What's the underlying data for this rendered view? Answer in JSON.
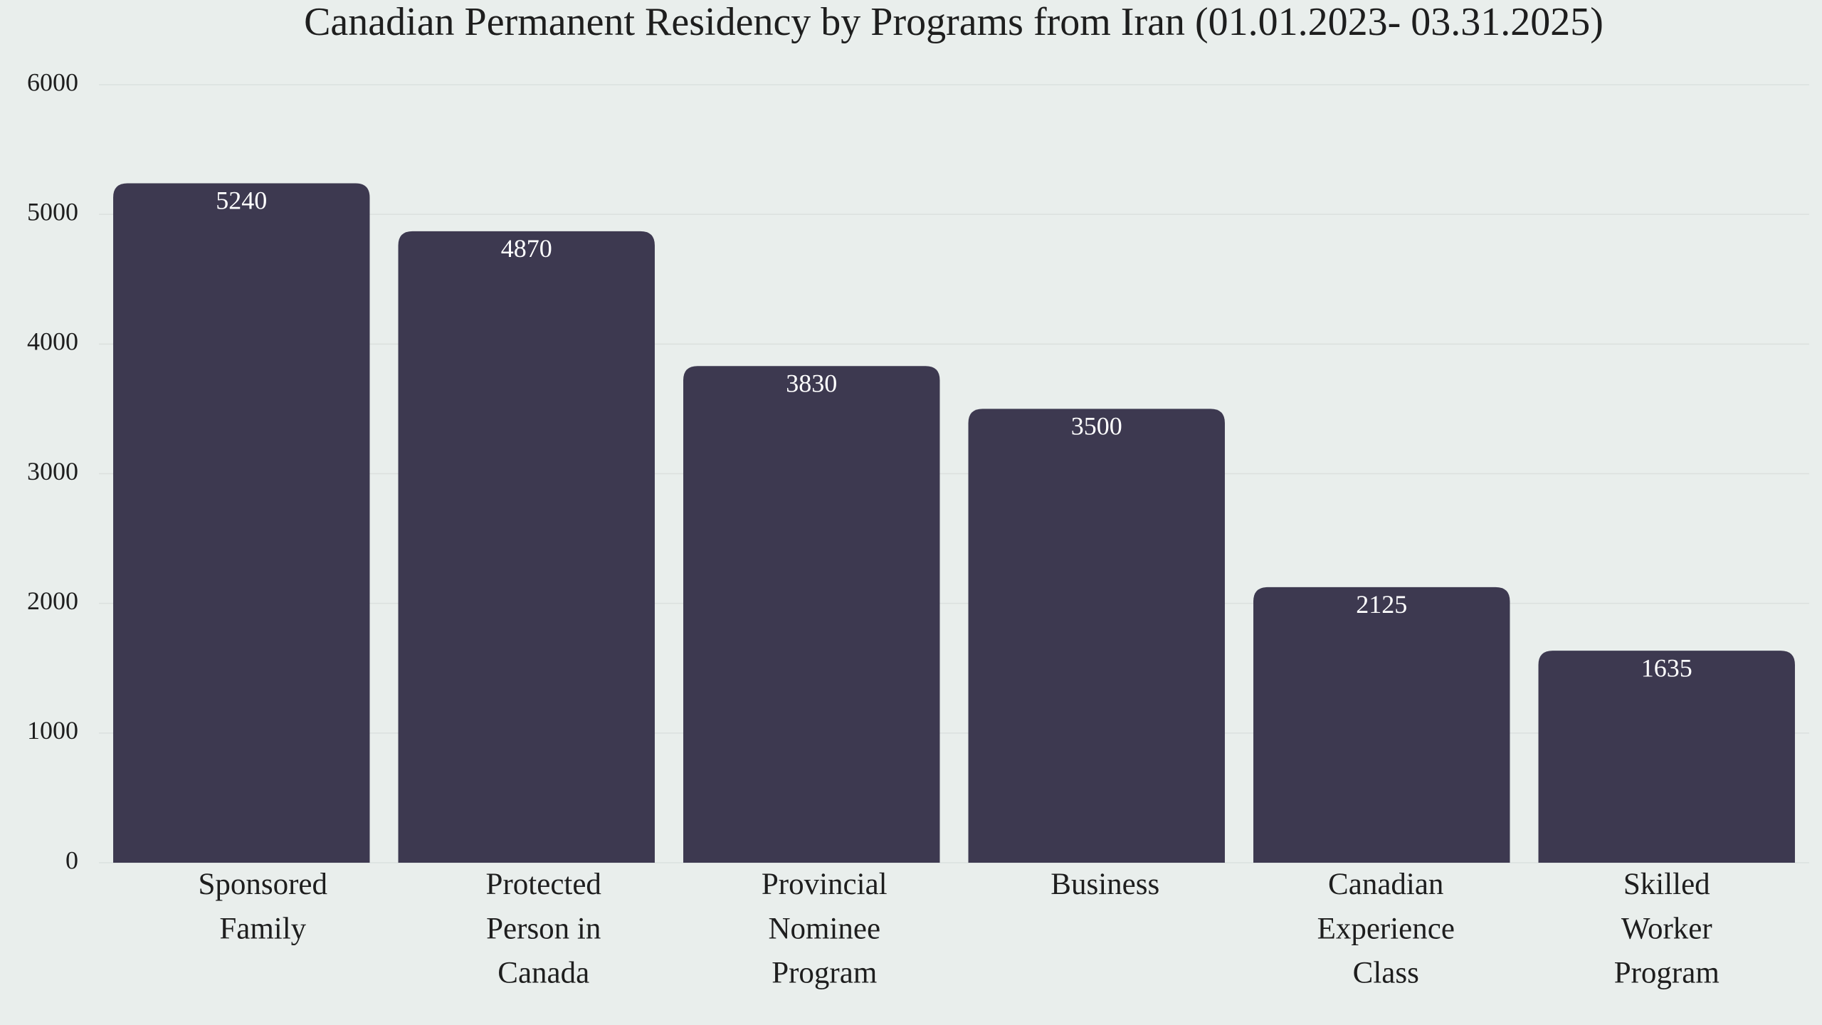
{
  "chart_data": {
    "type": "bar",
    "title": "Canadian Permanent Residency by Programs from Iran (01.01.2023- 03.31.2025)",
    "categories": [
      "Sponsored\nFamily",
      "Protected\nPerson in\nCanada",
      "Provincial\nNominee\nProgram",
      "Business",
      "Canadian\nExperience\nClass",
      "Skilled\nWorker\nProgram"
    ],
    "values": [
      5240,
      4870,
      3830,
      3500,
      2125,
      1635
    ],
    "color": "#3d3950",
    "ylim": [
      0,
      6000
    ],
    "yticks": [
      0,
      1000,
      2000,
      3000,
      4000,
      5000,
      6000
    ],
    "grid": true
  }
}
